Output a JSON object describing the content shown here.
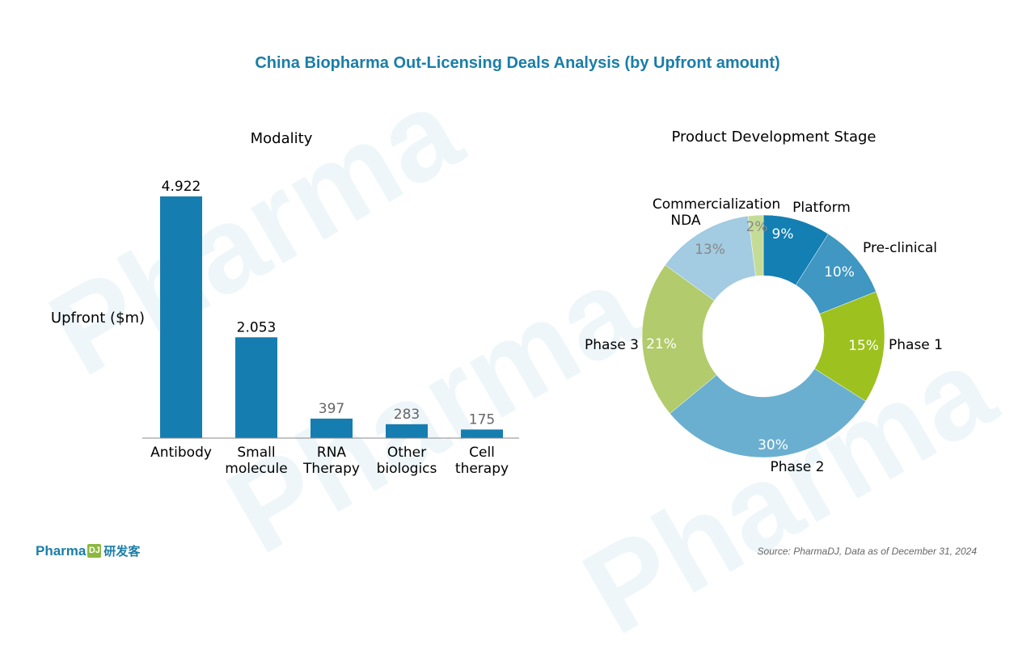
{
  "title": "China Biopharma Out-Licensing Deals Analysis (by Upfront amount)",
  "watermark": "Pharma",
  "footer": {
    "logo_text": "Pharma",
    "logo_badge": "DJ",
    "logo_cn": "研发客",
    "source": "Source: PharmaDJ, Data as of December 31, 2024"
  },
  "colors": {
    "title": "#1a7ea8",
    "bar": "#167db0"
  },
  "chart_data": [
    {
      "type": "bar",
      "title": "Modality",
      "ylabel": "Upfront ($m)",
      "xlabel": "",
      "categories": [
        [
          "Antibody"
        ],
        [
          "Small",
          "molecule"
        ],
        [
          "RNA",
          "Therapy"
        ],
        [
          "Other",
          "biologics"
        ],
        [
          "Cell",
          "therapy"
        ]
      ],
      "values": [
        4922,
        2053,
        397,
        283,
        175
      ],
      "value_labels": [
        "4.922",
        "2.053",
        "397",
        "283",
        "175"
      ],
      "ylim": [
        0,
        5000
      ],
      "grid": false,
      "legend": "none"
    },
    {
      "type": "pie",
      "subtype": "donut",
      "title": "Product Development Stage",
      "slices": [
        {
          "label": "Platform",
          "value": 9,
          "pct_label": "9%",
          "color": "#137fb3"
        },
        {
          "label": "Pre-clinical",
          "value": 10,
          "pct_label": "10%",
          "color": "#3f97c2"
        },
        {
          "label": "Phase 1",
          "value": 15,
          "pct_label": "15%",
          "color": "#9dc11f"
        },
        {
          "label": "Phase 2",
          "value": 30,
          "pct_label": "30%",
          "color": "#6aafcf"
        },
        {
          "label": "Phase 3",
          "value": 21,
          "pct_label": "21%",
          "color": "#b2cb6c"
        },
        {
          "label": "NDA",
          "value": 13,
          "pct_label": "13%",
          "color": "#a3cbe1"
        },
        {
          "label": "Commercialization",
          "value": 2,
          "pct_label": "2%",
          "color": "#c5dc96"
        }
      ],
      "legend": "none"
    }
  ]
}
